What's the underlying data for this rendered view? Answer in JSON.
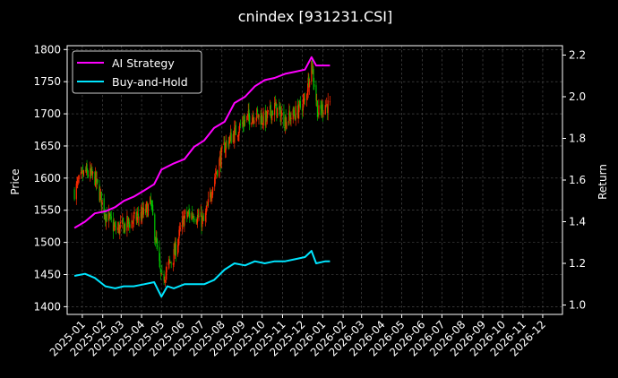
{
  "chart_data": {
    "type": "line",
    "title": "cnindex [931231.CSI]",
    "xlabel": "",
    "ylabel": "Price",
    "y2label": "Return",
    "ylim": [
      1388,
      1806
    ],
    "y2lim": [
      0.955,
      2.245
    ],
    "x_ticks": [
      "2025-01",
      "2025-02",
      "2025-03",
      "2025-04",
      "2025-05",
      "2025-06",
      "2025-07",
      "2025-08",
      "2025-09",
      "2025-10",
      "2025-11",
      "2025-12",
      "2026-01",
      "2026-02",
      "2026-03",
      "2026-04",
      "2026-05",
      "2026-06",
      "2026-07",
      "2026-08",
      "2026-09",
      "2026-10",
      "2026-11",
      "2026-12"
    ],
    "y_ticks": [
      1400,
      1450,
      1500,
      1550,
      1600,
      1650,
      1700,
      1750,
      1800
    ],
    "y2_ticks": [
      1.0,
      1.2,
      1.4,
      1.6,
      1.8,
      2.0,
      2.2
    ],
    "grid": true,
    "legend": "top-left",
    "colors": {
      "up": "#ff2a00",
      "down": "#00c000",
      "ai": "#ff00ff",
      "bh": "#00e5ff",
      "grid": "#555555"
    },
    "price_series": {
      "name": "Price",
      "x": [
        "2024-12-20",
        "2025-01-05",
        "2025-01-20",
        "2025-02-05",
        "2025-02-20",
        "2025-03-05",
        "2025-03-20",
        "2025-04-05",
        "2025-04-15",
        "2025-05-01",
        "2025-05-20",
        "2025-06-05",
        "2025-06-20",
        "2025-07-05",
        "2025-07-20",
        "2025-08-05",
        "2025-08-20",
        "2025-09-05",
        "2025-09-20",
        "2025-10-05",
        "2025-10-20",
        "2025-11-05",
        "2025-11-20",
        "2025-12-05",
        "2025-12-15",
        "2025-12-25",
        "2026-01-05",
        "2026-01-12"
      ],
      "values": [
        1580,
        1610,
        1600,
        1545,
        1520,
        1525,
        1535,
        1545,
        1560,
        1440,
        1480,
        1540,
        1545,
        1530,
        1600,
        1650,
        1670,
        1690,
        1700,
        1690,
        1710,
        1690,
        1700,
        1720,
        1780,
        1700,
        1715,
        1710
      ]
    },
    "series": [
      {
        "name": "AI Strategy",
        "x": [
          "2024-12-20",
          "2025-01-05",
          "2025-01-20",
          "2025-02-05",
          "2025-02-20",
          "2025-03-05",
          "2025-03-20",
          "2025-04-05",
          "2025-04-20",
          "2025-05-01",
          "2025-05-20",
          "2025-06-05",
          "2025-06-20",
          "2025-07-05",
          "2025-07-20",
          "2025-08-05",
          "2025-08-20",
          "2025-09-05",
          "2025-09-20",
          "2025-10-05",
          "2025-10-20",
          "2025-11-05",
          "2025-11-20",
          "2025-12-05",
          "2025-12-15",
          "2025-12-22",
          "2026-01-05",
          "2026-01-12"
        ],
        "values": [
          1.37,
          1.4,
          1.44,
          1.45,
          1.47,
          1.5,
          1.52,
          1.55,
          1.58,
          1.65,
          1.68,
          1.7,
          1.76,
          1.79,
          1.85,
          1.88,
          1.97,
          2.0,
          2.05,
          2.08,
          2.09,
          2.11,
          2.12,
          2.13,
          2.19,
          2.15,
          2.15,
          2.15
        ]
      },
      {
        "name": "Buy-and-Hold",
        "x": [
          "2024-12-20",
          "2025-01-05",
          "2025-01-20",
          "2025-02-05",
          "2025-02-20",
          "2025-03-05",
          "2025-03-20",
          "2025-04-05",
          "2025-04-20",
          "2025-05-01",
          "2025-05-10",
          "2025-05-20",
          "2025-06-05",
          "2025-06-20",
          "2025-07-05",
          "2025-07-20",
          "2025-08-05",
          "2025-08-20",
          "2025-09-05",
          "2025-09-20",
          "2025-10-05",
          "2025-10-20",
          "2025-11-05",
          "2025-11-20",
          "2025-12-05",
          "2025-12-15",
          "2025-12-22",
          "2026-01-05",
          "2026-01-12"
        ],
        "values": [
          1.14,
          1.15,
          1.13,
          1.09,
          1.08,
          1.09,
          1.09,
          1.1,
          1.11,
          1.04,
          1.09,
          1.08,
          1.1,
          1.1,
          1.1,
          1.12,
          1.17,
          1.2,
          1.19,
          1.21,
          1.2,
          1.21,
          1.21,
          1.22,
          1.23,
          1.26,
          1.2,
          1.21,
          1.21
        ]
      }
    ]
  }
}
